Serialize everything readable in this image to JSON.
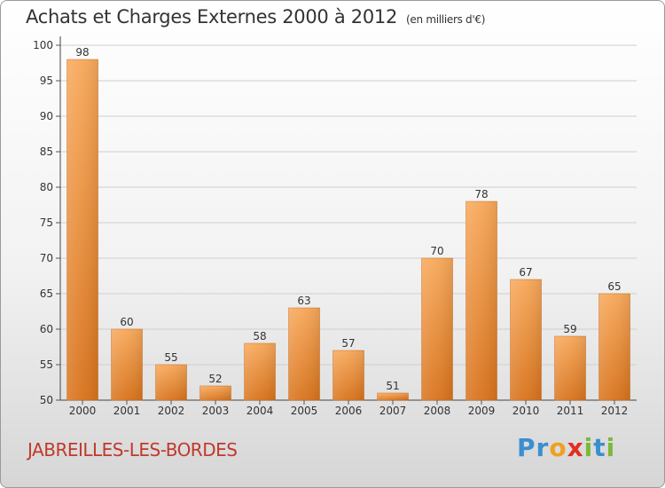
{
  "title": "Achats et Charges Externes 2000 à 2012",
  "subtitle": "(en milliers d'€)",
  "commune": "JABREILLES-LES-BORDES",
  "brand": {
    "letters": [
      {
        "ch": "P",
        "color": "#3a8fd0"
      },
      {
        "ch": "r",
        "color": "#3a8fd0"
      },
      {
        "ch": "o",
        "color": "#f0a020"
      },
      {
        "ch": "x",
        "color": "#e03020"
      },
      {
        "ch": "i",
        "color": "#7cb83a"
      },
      {
        "ch": "t",
        "color": "#3a8fd0"
      },
      {
        "ch": "i",
        "color": "#7cb83a"
      }
    ]
  },
  "colors": {
    "bar_top": "#f7a85a",
    "bar_bottom": "#d8731c",
    "grid": "#cfcfcf"
  },
  "chart_data": {
    "type": "bar",
    "title": "Achats et Charges Externes 2000 à 2012",
    "subtitle": "(en milliers d'€)",
    "categories": [
      "2000",
      "2001",
      "2002",
      "2003",
      "2004",
      "2005",
      "2006",
      "2007",
      "2008",
      "2009",
      "2010",
      "2011",
      "2012"
    ],
    "values": [
      98,
      60,
      55,
      52,
      58,
      63,
      57,
      51,
      70,
      78,
      67,
      59,
      65
    ],
    "ylim": [
      50,
      100
    ],
    "yticks": [
      50,
      55,
      60,
      65,
      70,
      75,
      80,
      85,
      90,
      95,
      100
    ],
    "grid": true
  }
}
